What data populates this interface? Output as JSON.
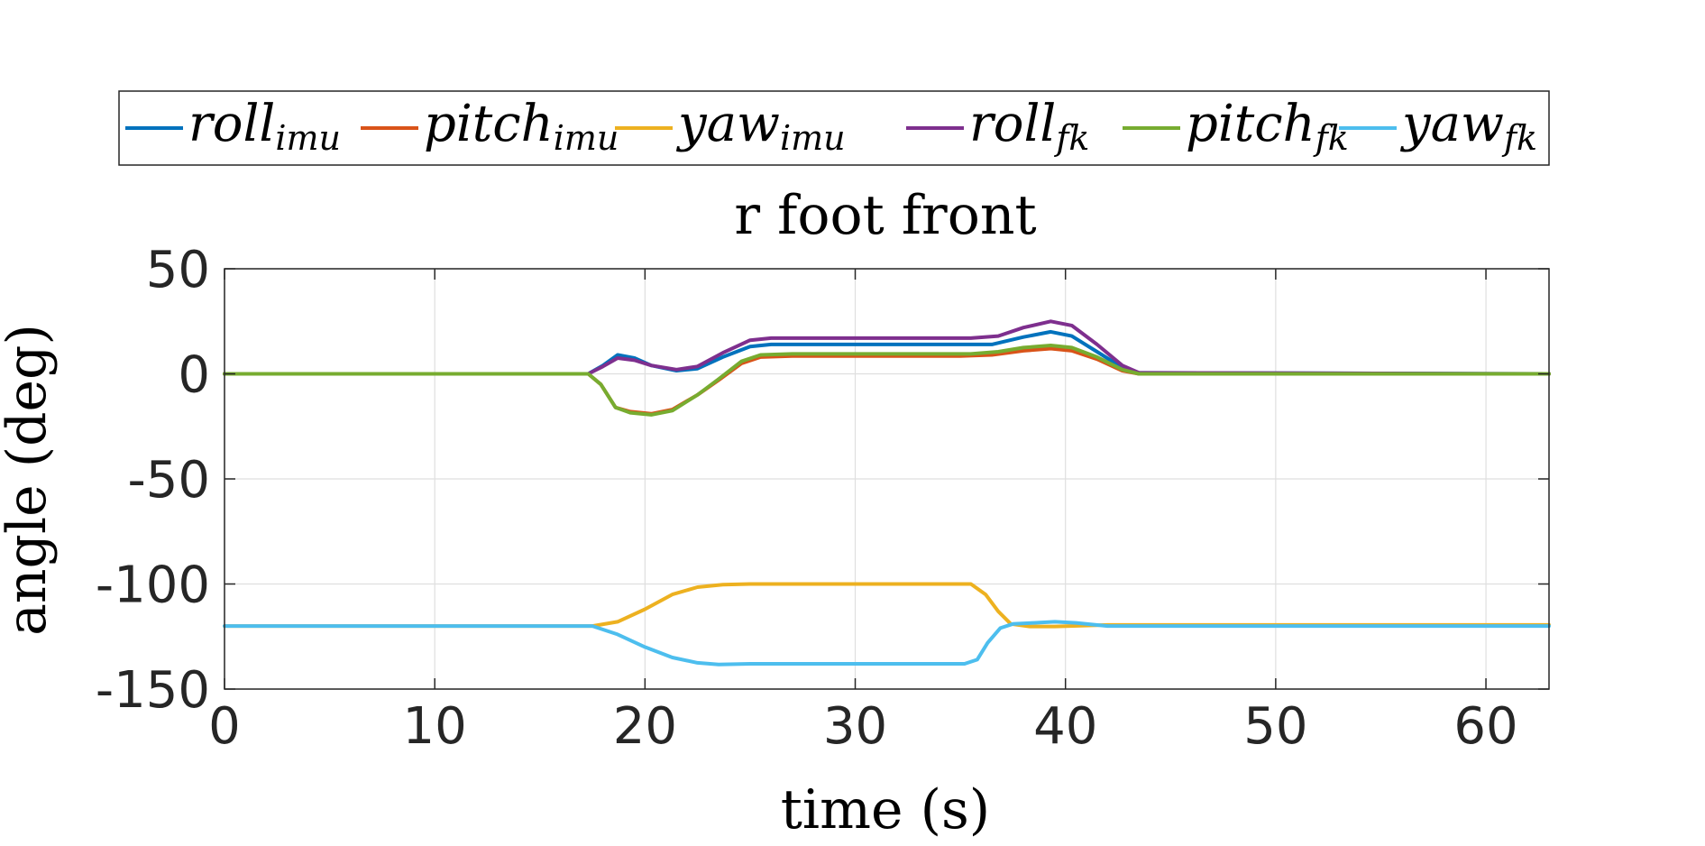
{
  "chart_data": {
    "type": "line",
    "title": "r foot front",
    "xlabel": "time (s)",
    "ylabel": "angle (deg)",
    "xlim": [
      0,
      63
    ],
    "ylim": [
      -150,
      50
    ],
    "xticks": [
      0,
      10,
      20,
      30,
      40,
      50,
      60
    ],
    "yticks": [
      50,
      0,
      -50,
      -100,
      -150
    ],
    "xtick_labels": [
      "0",
      "10",
      "20",
      "30",
      "40",
      "50",
      "60"
    ],
    "ytick_labels": [
      "50",
      "0",
      "-50",
      "-100",
      "-150"
    ],
    "grid": true,
    "legend_position": "top, horizontal",
    "series": [
      {
        "name": "roll",
        "sub": "imu",
        "color": "#0072BD",
        "points": [
          [
            0,
            0
          ],
          [
            17.3,
            0
          ],
          [
            18,
            4
          ],
          [
            18.7,
            9
          ],
          [
            19.5,
            7.5
          ],
          [
            20.3,
            4
          ],
          [
            21.5,
            1.5
          ],
          [
            22.5,
            2.5
          ],
          [
            23.7,
            8
          ],
          [
            25,
            13
          ],
          [
            26,
            14
          ],
          [
            35,
            14
          ],
          [
            36.5,
            14
          ],
          [
            38,
            17.5
          ],
          [
            39.3,
            20
          ],
          [
            40.3,
            18
          ],
          [
            41.5,
            10.5
          ],
          [
            42.7,
            3
          ],
          [
            43.5,
            0.5
          ],
          [
            63,
            0
          ]
        ]
      },
      {
        "name": "pitch",
        "sub": "imu",
        "color": "#D95319",
        "points": [
          [
            0,
            0
          ],
          [
            17.3,
            0
          ],
          [
            17.9,
            -5
          ],
          [
            18.6,
            -16
          ],
          [
            19.3,
            -18
          ],
          [
            20.3,
            -19
          ],
          [
            21.3,
            -17
          ],
          [
            22.5,
            -10
          ],
          [
            23.5,
            -3
          ],
          [
            24.6,
            5
          ],
          [
            25.5,
            8
          ],
          [
            27,
            8.5
          ],
          [
            35,
            8.5
          ],
          [
            36.5,
            9
          ],
          [
            38,
            11
          ],
          [
            39.3,
            12
          ],
          [
            40.3,
            11
          ],
          [
            41.5,
            7
          ],
          [
            42.7,
            1.5
          ],
          [
            43.5,
            0
          ],
          [
            63,
            0
          ]
        ]
      },
      {
        "name": "yaw",
        "sub": "imu",
        "color": "#EDB120",
        "points": [
          [
            0,
            -120
          ],
          [
            17.5,
            -120
          ],
          [
            18.7,
            -118
          ],
          [
            20,
            -112
          ],
          [
            21.3,
            -105
          ],
          [
            22.5,
            -101.5
          ],
          [
            23.7,
            -100.3
          ],
          [
            25,
            -100
          ],
          [
            35.5,
            -100
          ],
          [
            36.2,
            -105
          ],
          [
            36.8,
            -113
          ],
          [
            37.4,
            -119
          ],
          [
            38.3,
            -120.2
          ],
          [
            39.5,
            -120.2
          ],
          [
            42,
            -119.5
          ],
          [
            63,
            -119.5
          ]
        ]
      },
      {
        "name": "roll",
        "sub": "fk",
        "color": "#7E2F8E",
        "points": [
          [
            0,
            0
          ],
          [
            17.3,
            0
          ],
          [
            18,
            3.5
          ],
          [
            18.7,
            7.5
          ],
          [
            19.5,
            6.5
          ],
          [
            20.3,
            4
          ],
          [
            21.5,
            2
          ],
          [
            22.5,
            3.5
          ],
          [
            23.7,
            10
          ],
          [
            25,
            16
          ],
          [
            26,
            17
          ],
          [
            35.5,
            17
          ],
          [
            36.8,
            18
          ],
          [
            38,
            22
          ],
          [
            39.3,
            25
          ],
          [
            40.3,
            23
          ],
          [
            41.5,
            14
          ],
          [
            42.7,
            4
          ],
          [
            43.5,
            0.5
          ],
          [
            63,
            0
          ]
        ]
      },
      {
        "name": "pitch",
        "sub": "fk",
        "color": "#77AC30",
        "points": [
          [
            0,
            0
          ],
          [
            17.3,
            0
          ],
          [
            17.9,
            -5
          ],
          [
            18.6,
            -16
          ],
          [
            19.3,
            -18.5
          ],
          [
            20.3,
            -19.5
          ],
          [
            21.3,
            -17.5
          ],
          [
            22.5,
            -10
          ],
          [
            23.5,
            -2.5
          ],
          [
            24.6,
            6
          ],
          [
            25.5,
            9
          ],
          [
            27,
            9.5
          ],
          [
            35.5,
            9.5
          ],
          [
            36.8,
            10.5
          ],
          [
            38,
            12.5
          ],
          [
            39.3,
            13.5
          ],
          [
            40.3,
            12.5
          ],
          [
            41.5,
            8
          ],
          [
            42.7,
            2
          ],
          [
            43.5,
            0
          ],
          [
            63,
            0
          ]
        ]
      },
      {
        "name": "yaw",
        "sub": "fk",
        "color": "#4DBEEE",
        "points": [
          [
            0,
            -120
          ],
          [
            17.5,
            -120
          ],
          [
            18.7,
            -124
          ],
          [
            20,
            -130
          ],
          [
            21.3,
            -135
          ],
          [
            22.5,
            -137.5
          ],
          [
            23.5,
            -138.3
          ],
          [
            25,
            -138
          ],
          [
            35.2,
            -138
          ],
          [
            35.8,
            -136
          ],
          [
            36.3,
            -128
          ],
          [
            36.9,
            -121
          ],
          [
            37.5,
            -119
          ],
          [
            38.5,
            -118.5
          ],
          [
            39.5,
            -118
          ],
          [
            40.5,
            -118.5
          ],
          [
            42,
            -120
          ],
          [
            63,
            -120
          ]
        ]
      }
    ]
  }
}
